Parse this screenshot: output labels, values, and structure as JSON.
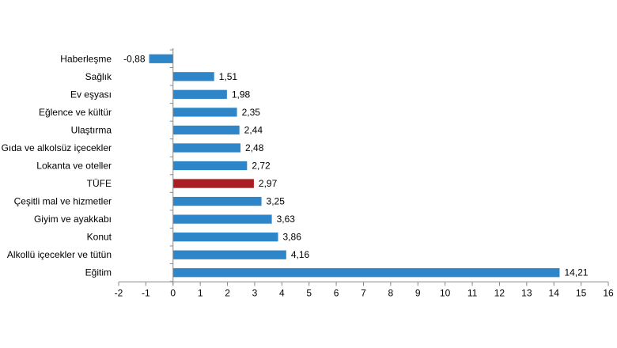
{
  "chart_data": {
    "type": "bar",
    "orientation": "horizontal",
    "categories": [
      "Haberleşme",
      "Sağlık",
      "Ev eşyası",
      "Eğlence ve kültür",
      "Ulaştırma",
      "Gıda ve alkolsüz içecekler",
      "Lokanta ve oteller",
      "TÜFE",
      "Çeşitli mal ve hizmetler",
      "Giyim ve ayakkabı",
      "Konut",
      "Alkollü içecekler ve tütün",
      "Eğitim"
    ],
    "values": [
      -0.88,
      1.51,
      1.98,
      2.35,
      2.44,
      2.48,
      2.72,
      2.97,
      3.25,
      3.63,
      3.86,
      4.16,
      14.21
    ],
    "value_labels": [
      "-0,88",
      "1,51",
      "1,98",
      "2,35",
      "2,44",
      "2,48",
      "2,72",
      "2,97",
      "3,25",
      "3,63",
      "3,86",
      "4,16",
      "14,21"
    ],
    "xlim": [
      -2,
      16
    ],
    "x_ticks": [
      "-2",
      "-1",
      "0",
      "1",
      "2",
      "3",
      "4",
      "5",
      "6",
      "7",
      "8",
      "9",
      "10",
      "11",
      "12",
      "13",
      "14",
      "15",
      "16"
    ],
    "bar_color": "#2e86c9",
    "highlight_category": "TÜFE",
    "highlight_color": "#a81e23",
    "grid": false,
    "legend": "none"
  }
}
